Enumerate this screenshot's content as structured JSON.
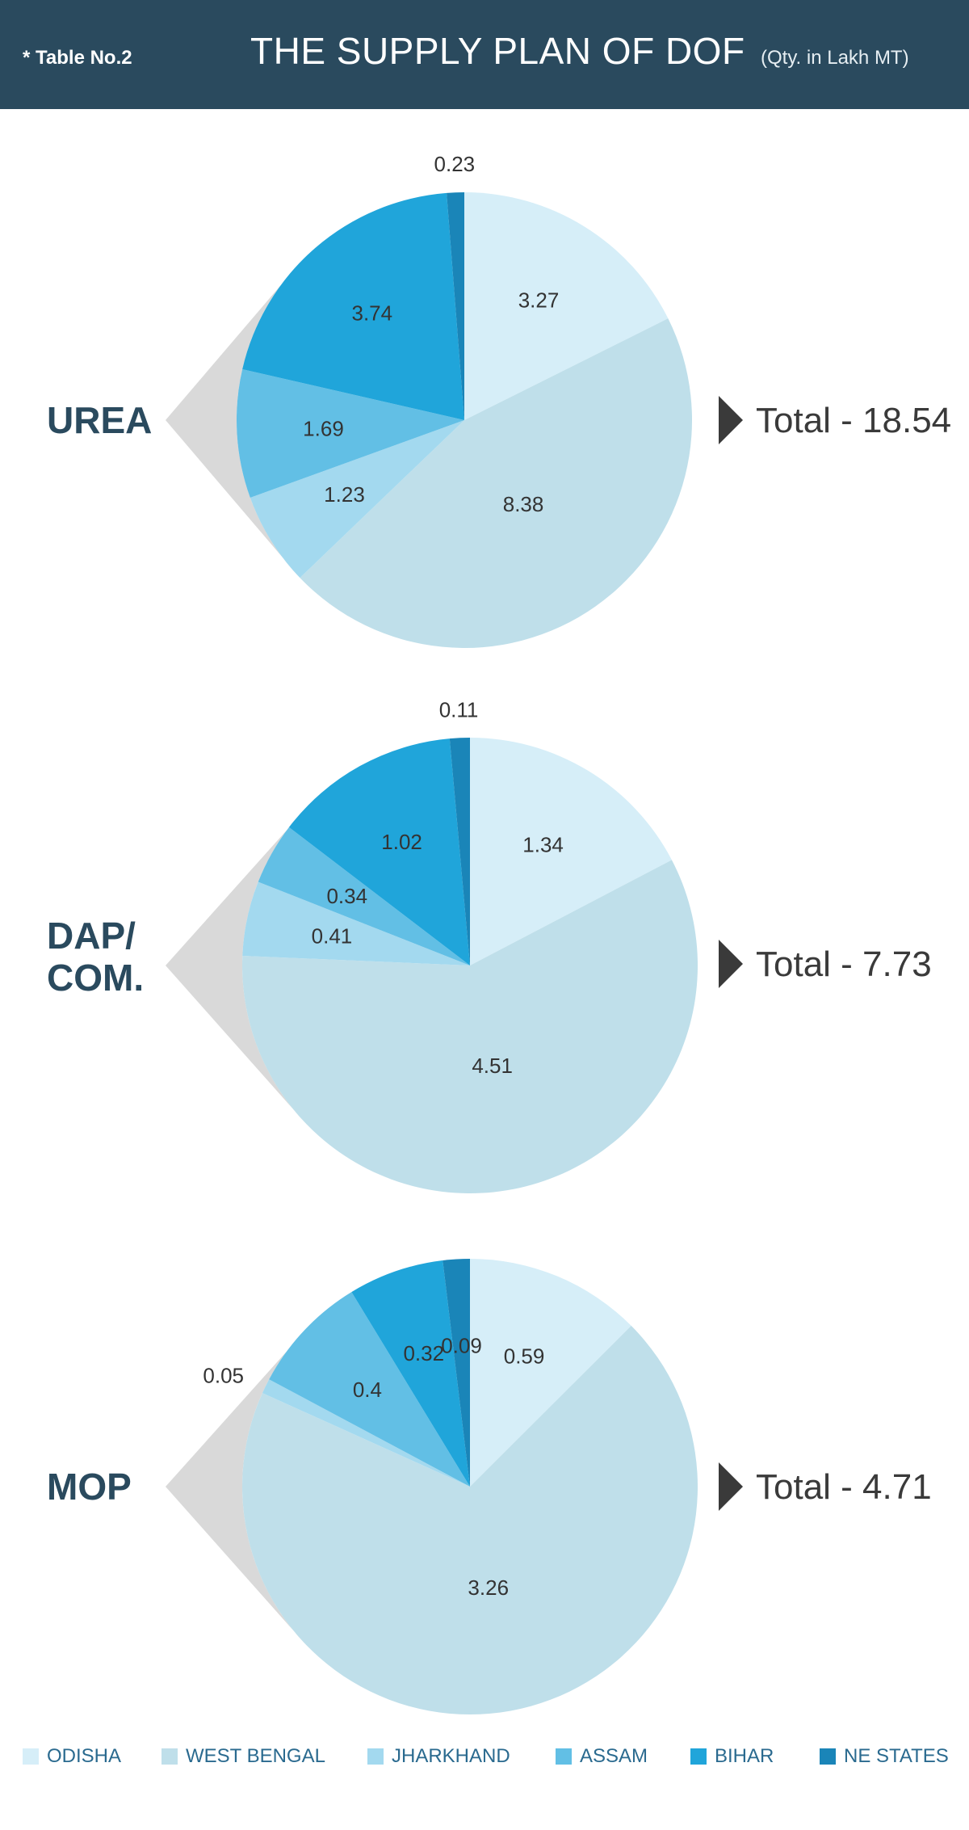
{
  "header": {
    "table_no": "* Table No.2",
    "title": "THE SUPPLY PLAN OF DOF",
    "unit": "(Qty. in Lakh MT)"
  },
  "colors": {
    "header_bg": "#2a4a5e",
    "shadow": "#d9d9d9",
    "label": "#2a4a5e"
  },
  "chart_data": [
    {
      "type": "pie",
      "label": "UREA",
      "total_text": "Total - 18.54",
      "slices": [
        {
          "name": "ODISHA",
          "value": 3.27,
          "label": "3.27"
        },
        {
          "name": "WEST BENGAL",
          "value": 8.38,
          "label": "8.38"
        },
        {
          "name": "JHARKHAND",
          "value": 1.23,
          "label": "1.23"
        },
        {
          "name": "ASSAM",
          "value": 1.69,
          "label": "1.69"
        },
        {
          "name": "BIHAR",
          "value": 3.74,
          "label": "3.74"
        },
        {
          "name": "NE STATES",
          "value": 0.23,
          "label": "0.23"
        }
      ]
    },
    {
      "type": "pie",
      "label": "DAP/ COM.",
      "total_text": "Total - 7.73",
      "slices": [
        {
          "name": "ODISHA",
          "value": 1.34,
          "label": "1.34"
        },
        {
          "name": "WEST BENGAL",
          "value": 4.51,
          "label": "4.51"
        },
        {
          "name": "JHARKHAND",
          "value": 0.41,
          "label": "0.41"
        },
        {
          "name": "ASSAM",
          "value": 0.34,
          "label": "0.34"
        },
        {
          "name": "BIHAR",
          "value": 1.02,
          "label": "1.02"
        },
        {
          "name": "NE STATES",
          "value": 0.11,
          "label": "0.11"
        }
      ]
    },
    {
      "type": "pie",
      "label": "MOP",
      "total_text": "Total - 4.71",
      "slices": [
        {
          "name": "ODISHA",
          "value": 0.59,
          "label": "0.59"
        },
        {
          "name": "WEST BENGAL",
          "value": 3.26,
          "label": "3.26"
        },
        {
          "name": "JHARKHAND",
          "value": 0.05,
          "label": "0.05"
        },
        {
          "name": "ASSAM",
          "value": 0.4,
          "label": "0.4"
        },
        {
          "name": "BIHAR",
          "value": 0.32,
          "label": "0.32"
        },
        {
          "name": "NE STATES",
          "value": 0.09,
          "label": "0.09"
        }
      ]
    }
  ],
  "legend": [
    {
      "name": "ODISHA",
      "color": "#d6eef8"
    },
    {
      "name": "WEST BENGAL",
      "color": "#bfdfea"
    },
    {
      "name": "JHARKHAND",
      "color": "#a3d9ef"
    },
    {
      "name": "ASSAM",
      "color": "#62bfe5"
    },
    {
      "name": "BIHAR",
      "color": "#20a5da"
    },
    {
      "name": "NE STATES",
      "color": "#1a85b8"
    }
  ]
}
